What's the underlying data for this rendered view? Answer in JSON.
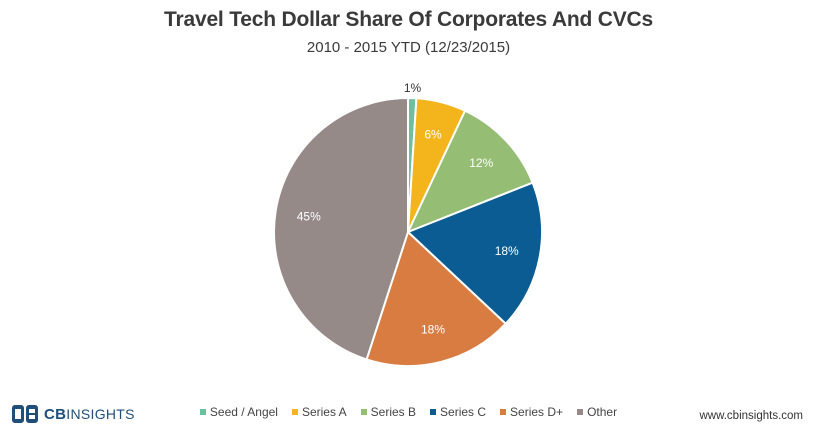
{
  "title": "Travel Tech Dollar Share Of Corporates And CVCs",
  "subtitle": "2010 - 2015 YTD (12/23/2015)",
  "chart_data": {
    "type": "pie",
    "title": "Travel Tech Dollar Share Of Corporates And CVCs",
    "subtitle": "2010 - 2015 YTD (12/23/2015)",
    "legend_position": "bottom",
    "slices": [
      {
        "label": "Seed / Angel",
        "value": 1,
        "display": "1%",
        "color": "#6fbf9f"
      },
      {
        "label": "Series A",
        "value": 6,
        "display": "6%",
        "color": "#f3b51b"
      },
      {
        "label": "Series B",
        "value": 12,
        "display": "12%",
        "color": "#95bd73"
      },
      {
        "label": "Series C",
        "value": 18,
        "display": "18%",
        "color": "#0b5c93"
      },
      {
        "label": "Series D+",
        "value": 18,
        "display": "18%",
        "color": "#d97c41"
      },
      {
        "label": "Other",
        "value": 45,
        "display": "45%",
        "color": "#958a87"
      }
    ]
  },
  "branding": {
    "logo_cb": "CB",
    "logo_insights": "INSIGHTS",
    "url": "www.cbinsights.com"
  }
}
